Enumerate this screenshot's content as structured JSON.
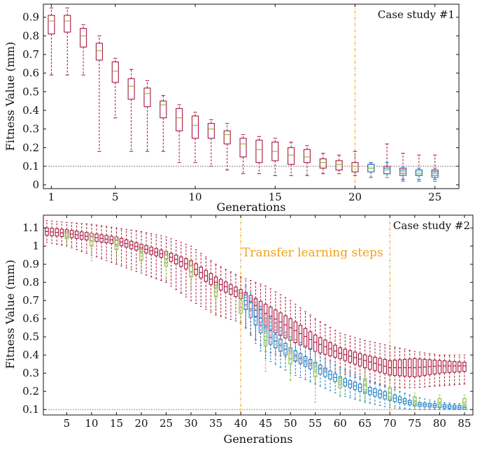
{
  "charts": [
    {
      "panel_label": "Case study #1",
      "xlabel": "Generations",
      "ylabel": "Fitness Value (mm)",
      "xticks": [
        "1",
        "5",
        "10",
        "15",
        "20",
        "25"
      ],
      "yticks": [
        "0",
        "0.1",
        "0.2",
        "0.3",
        "0.4",
        "0.5",
        "0.6",
        "0.7",
        "0.8",
        "0.9"
      ]
    },
    {
      "panel_label": "Case study #2",
      "annotation": "Transfer learning steps",
      "xlabel": "Generations",
      "ylabel": "Fitness Value (mm)",
      "xticks": [
        "5",
        "10",
        "15",
        "20",
        "25",
        "30",
        "35",
        "40",
        "45",
        "50",
        "55",
        "60",
        "65",
        "70",
        "75",
        "80",
        "85"
      ],
      "yticks": [
        "0.1",
        "0.2",
        "0.3",
        "0.4",
        "0.5",
        "0.6",
        "0.7",
        "0.8",
        "0.9",
        "1",
        "1.1"
      ]
    }
  ],
  "chart_data": [
    {
      "type": "box",
      "title": "Case study #1",
      "xlabel": "Generations",
      "ylabel": "Fitness Value (mm)",
      "xlim": [
        0.5,
        26.5
      ],
      "ylim": [
        -0.02,
        0.97
      ],
      "reference_line_y": 0.1,
      "vertical_marker_x": [
        20
      ],
      "colors": {
        "red": "#a8173f",
        "blue": "#1f7fc4",
        "median": "#8bbf3a",
        "marker": "#f0a21c"
      },
      "series": [
        {
          "color": "red",
          "boxes": [
            {
              "x": 1,
              "whislo": 0.59,
              "q1": 0.81,
              "med": 0.88,
              "q3": 0.91,
              "whishi": 0.95
            },
            {
              "x": 2,
              "whislo": 0.59,
              "q1": 0.82,
              "med": 0.88,
              "q3": 0.91,
              "whishi": 0.95
            },
            {
              "x": 3,
              "whislo": 0.59,
              "q1": 0.74,
              "med": 0.8,
              "q3": 0.84,
              "whishi": 0.86
            },
            {
              "x": 4,
              "whislo": 0.18,
              "q1": 0.67,
              "med": 0.72,
              "q3": 0.76,
              "whishi": 0.8
            },
            {
              "x": 5,
              "whislo": 0.36,
              "q1": 0.55,
              "med": 0.61,
              "q3": 0.66,
              "whishi": 0.68
            },
            {
              "x": 6,
              "whislo": 0.18,
              "q1": 0.46,
              "med": 0.53,
              "q3": 0.57,
              "whishi": 0.62
            },
            {
              "x": 7,
              "whislo": 0.18,
              "q1": 0.42,
              "med": 0.49,
              "q3": 0.52,
              "whishi": 0.56
            },
            {
              "x": 8,
              "whislo": 0.18,
              "q1": 0.36,
              "med": 0.43,
              "q3": 0.45,
              "whishi": 0.48
            },
            {
              "x": 9,
              "whislo": 0.12,
              "q1": 0.29,
              "med": 0.36,
              "q3": 0.41,
              "whishi": 0.43
            },
            {
              "x": 10,
              "whislo": 0.12,
              "q1": 0.25,
              "med": 0.32,
              "q3": 0.37,
              "whishi": 0.39
            },
            {
              "x": 11,
              "whislo": 0.1,
              "q1": 0.25,
              "med": 0.3,
              "q3": 0.33,
              "whishi": 0.35
            },
            {
              "x": 12,
              "whislo": 0.08,
              "q1": 0.22,
              "med": 0.27,
              "q3": 0.29,
              "whishi": 0.33
            },
            {
              "x": 13,
              "whislo": 0.06,
              "q1": 0.15,
              "med": 0.22,
              "q3": 0.25,
              "whishi": 0.27
            },
            {
              "x": 14,
              "whislo": 0.06,
              "q1": 0.12,
              "med": 0.19,
              "q3": 0.24,
              "whishi": 0.26
            },
            {
              "x": 15,
              "whislo": 0.05,
              "q1": 0.13,
              "med": 0.18,
              "q3": 0.23,
              "whishi": 0.25
            },
            {
              "x": 16,
              "whislo": 0.05,
              "q1": 0.11,
              "med": 0.16,
              "q3": 0.2,
              "whishi": 0.23
            },
            {
              "x": 17,
              "whislo": 0.05,
              "q1": 0.12,
              "med": 0.15,
              "q3": 0.19,
              "whishi": 0.21
            },
            {
              "x": 18,
              "whislo": 0.06,
              "q1": 0.09,
              "med": 0.12,
              "q3": 0.14,
              "whishi": 0.17
            },
            {
              "x": 19,
              "whislo": 0.06,
              "q1": 0.08,
              "med": 0.11,
              "q3": 0.13,
              "whishi": 0.16
            },
            {
              "x": 20,
              "whislo": 0.05,
              "q1": 0.07,
              "med": 0.1,
              "q3": 0.12,
              "whishi": 0.18
            },
            {
              "x": 21,
              "whislo": 0.04,
              "q1": 0.07,
              "med": 0.09,
              "q3": 0.11,
              "whishi": 0.12
            },
            {
              "x": 22,
              "whislo": 0.04,
              "q1": 0.06,
              "med": 0.08,
              "q3": 0.1,
              "whishi": 0.22
            },
            {
              "x": 23,
              "whislo": 0.03,
              "q1": 0.06,
              "med": 0.07,
              "q3": 0.09,
              "whishi": 0.17
            },
            {
              "x": 24,
              "whislo": 0.03,
              "q1": 0.05,
              "med": 0.07,
              "q3": 0.08,
              "whishi": 0.16
            },
            {
              "x": 25,
              "whislo": 0.03,
              "q1": 0.05,
              "med": 0.07,
              "q3": 0.08,
              "whishi": 0.16
            }
          ]
        },
        {
          "color": "blue",
          "boxes": [
            {
              "x": 21,
              "whislo": 0.04,
              "q1": 0.07,
              "med": 0.09,
              "q3": 0.11,
              "whishi": 0.12
            },
            {
              "x": 22,
              "whislo": 0.04,
              "q1": 0.06,
              "med": 0.08,
              "q3": 0.09,
              "whishi": 0.12
            },
            {
              "x": 23,
              "whislo": 0.02,
              "q1": 0.05,
              "med": 0.07,
              "q3": 0.08,
              "whishi": 0.1
            },
            {
              "x": 24,
              "whislo": 0.02,
              "q1": 0.05,
              "med": 0.06,
              "q3": 0.08,
              "whishi": 0.09
            },
            {
              "x": 25,
              "whislo": 0.02,
              "q1": 0.04,
              "med": 0.06,
              "q3": 0.07,
              "whishi": 0.09
            }
          ]
        }
      ]
    },
    {
      "type": "box",
      "title": "Case study #2",
      "annotation": "Transfer learning steps",
      "xlabel": "Generations",
      "ylabel": "Fitness Value (mm)",
      "xlim": [
        0.3,
        86.7
      ],
      "ylim": [
        0.07,
        1.17
      ],
      "reference_line_y": 0.1,
      "vertical_marker_x": [
        40,
        70
      ],
      "colors": {
        "red": "#a8173f",
        "blue": "#1f7fc4",
        "median": "#8bbf3a",
        "marker": "#f0a21c"
      },
      "series": [
        {
          "color": "red",
          "anchors": [
            {
              "x": 1,
              "med": 1.08,
              "q1": 1.06,
              "q3": 1.1,
              "whislo": 1.02,
              "whishi": 1.14
            },
            {
              "x": 5,
              "med": 1.07,
              "q1": 1.05,
              "q3": 1.09,
              "whislo": 1.0,
              "whishi": 1.13
            },
            {
              "x": 10,
              "med": 1.05,
              "q1": 1.03,
              "q3": 1.07,
              "whislo": 0.95,
              "whishi": 1.12
            },
            {
              "x": 15,
              "med": 1.03,
              "q1": 1.01,
              "q3": 1.05,
              "whislo": 0.9,
              "whishi": 1.1
            },
            {
              "x": 20,
              "med": 0.99,
              "q1": 0.97,
              "q3": 1.01,
              "whislo": 0.85,
              "whishi": 1.08
            },
            {
              "x": 25,
              "med": 0.95,
              "q1": 0.93,
              "q3": 0.97,
              "whislo": 0.8,
              "whishi": 1.05
            },
            {
              "x": 30,
              "med": 0.89,
              "q1": 0.86,
              "q3": 0.92,
              "whislo": 0.7,
              "whishi": 1.0
            },
            {
              "x": 35,
              "med": 0.8,
              "q1": 0.77,
              "q3": 0.83,
              "whislo": 0.62,
              "whishi": 0.9
            },
            {
              "x": 40,
              "med": 0.74,
              "q1": 0.71,
              "q3": 0.76,
              "whislo": 0.58,
              "whishi": 0.83
            },
            {
              "x": 45,
              "med": 0.63,
              "q1": 0.55,
              "q3": 0.68,
              "whislo": 0.42,
              "whishi": 0.78
            },
            {
              "x": 50,
              "med": 0.55,
              "q1": 0.48,
              "q3": 0.6,
              "whislo": 0.38,
              "whishi": 0.7
            },
            {
              "x": 55,
              "med": 0.47,
              "q1": 0.42,
              "q3": 0.51,
              "whislo": 0.33,
              "whishi": 0.6
            },
            {
              "x": 60,
              "med": 0.41,
              "q1": 0.38,
              "q3": 0.44,
              "whislo": 0.3,
              "whishi": 0.52
            },
            {
              "x": 65,
              "med": 0.37,
              "q1": 0.33,
              "q3": 0.4,
              "whislo": 0.26,
              "whishi": 0.48
            },
            {
              "x": 70,
              "med": 0.33,
              "q1": 0.29,
              "q3": 0.37,
              "whislo": 0.22,
              "whishi": 0.45
            },
            {
              "x": 75,
              "med": 0.33,
              "q1": 0.28,
              "q3": 0.38,
              "whislo": 0.22,
              "whishi": 0.42
            },
            {
              "x": 80,
              "med": 0.34,
              "q1": 0.3,
              "q3": 0.37,
              "whislo": 0.23,
              "whishi": 0.4
            },
            {
              "x": 85,
              "med": 0.34,
              "q1": 0.31,
              "q3": 0.36,
              "whislo": 0.24,
              "whishi": 0.4
            }
          ]
        },
        {
          "color": "blue",
          "x_range": [
            41,
            85
          ],
          "anchors": [
            {
              "x": 41,
              "med": 0.7,
              "q1": 0.65,
              "q3": 0.73,
              "whislo": 0.55,
              "whishi": 0.78
            },
            {
              "x": 45,
              "med": 0.52,
              "q1": 0.48,
              "q3": 0.56,
              "whislo": 0.38,
              "whishi": 0.63
            },
            {
              "x": 50,
              "med": 0.41,
              "q1": 0.38,
              "q3": 0.44,
              "whislo": 0.3,
              "whishi": 0.5
            },
            {
              "x": 55,
              "med": 0.34,
              "q1": 0.31,
              "q3": 0.36,
              "whislo": 0.24,
              "whishi": 0.42
            },
            {
              "x": 60,
              "med": 0.26,
              "q1": 0.24,
              "q3": 0.28,
              "whislo": 0.18,
              "whishi": 0.33
            },
            {
              "x": 65,
              "med": 0.21,
              "q1": 0.19,
              "q3": 0.23,
              "whislo": 0.14,
              "whishi": 0.27
            },
            {
              "x": 70,
              "med": 0.17,
              "q1": 0.15,
              "q3": 0.19,
              "whislo": 0.11,
              "whishi": 0.22
            },
            {
              "x": 75,
              "med": 0.13,
              "q1": 0.12,
              "q3": 0.14,
              "whislo": 0.1,
              "whishi": 0.17
            },
            {
              "x": 80,
              "med": 0.12,
              "q1": 0.11,
              "q3": 0.13,
              "whislo": 0.1,
              "whishi": 0.14
            },
            {
              "x": 85,
              "med": 0.11,
              "q1": 0.1,
              "q3": 0.12,
              "whislo": 0.1,
              "whishi": 0.13
            }
          ]
        },
        {
          "color": "median",
          "boxes": [
            {
              "x": 5,
              "whislo": 1.0,
              "q1": 1.04,
              "med": 1.06,
              "q3": 1.07,
              "whishi": 1.08
            },
            {
              "x": 10,
              "whislo": 0.92,
              "q1": 1.0,
              "med": 1.03,
              "q3": 1.05,
              "whishi": 1.07
            },
            {
              "x": 15,
              "whislo": 0.92,
              "q1": 0.98,
              "med": 1.0,
              "q3": 1.03,
              "whishi": 1.05
            },
            {
              "x": 20,
              "whislo": 0.85,
              "q1": 0.92,
              "med": 0.96,
              "q3": 0.98,
              "whishi": 1.01
            },
            {
              "x": 25,
              "whislo": 0.82,
              "q1": 0.89,
              "med": 0.91,
              "q3": 0.95,
              "whishi": 0.98
            },
            {
              "x": 30,
              "whislo": 0.76,
              "q1": 0.83,
              "med": 0.86,
              "q3": 0.89,
              "whishi": 0.93
            },
            {
              "x": 35,
              "whislo": 0.65,
              "q1": 0.72,
              "med": 0.75,
              "q3": 0.78,
              "whislo2": 0.65,
              "whishi": 0.84
            },
            {
              "x": 40,
              "whislo": 0.57,
              "q1": 0.63,
              "med": 0.66,
              "q3": 0.7,
              "whishi": 0.74
            },
            {
              "x": 45,
              "whislo": 0.31,
              "q1": 0.45,
              "med": 0.5,
              "q3": 0.53,
              "whishi": 0.6
            },
            {
              "x": 50,
              "whislo": 0.26,
              "q1": 0.35,
              "med": 0.38,
              "q3": 0.42,
              "whishi": 0.48
            },
            {
              "x": 55,
              "whislo": 0.14,
              "q1": 0.28,
              "med": 0.32,
              "q3": 0.35,
              "whishi": 0.4
            },
            {
              "x": 60,
              "whislo": 0.17,
              "q1": 0.22,
              "med": 0.25,
              "q3": 0.27,
              "whishi": 0.3
            },
            {
              "x": 65,
              "whislo": 0.15,
              "q1": 0.2,
              "med": 0.24,
              "q3": 0.27,
              "whishi": 0.32
            },
            {
              "x": 70,
              "whislo": 0.12,
              "q1": 0.16,
              "med": 0.19,
              "q3": 0.22,
              "whishi": 0.26
            },
            {
              "x": 75,
              "whislo": 0.1,
              "q1": 0.13,
              "med": 0.15,
              "q3": 0.17,
              "whishi": 0.19
            },
            {
              "x": 80,
              "whislo": 0.1,
              "q1": 0.12,
              "med": 0.14,
              "q3": 0.16,
              "whishi": 0.18
            },
            {
              "x": 85,
              "whislo": 0.1,
              "q1": 0.12,
              "med": 0.14,
              "q3": 0.16,
              "whishi": 0.18
            }
          ]
        }
      ]
    }
  ]
}
